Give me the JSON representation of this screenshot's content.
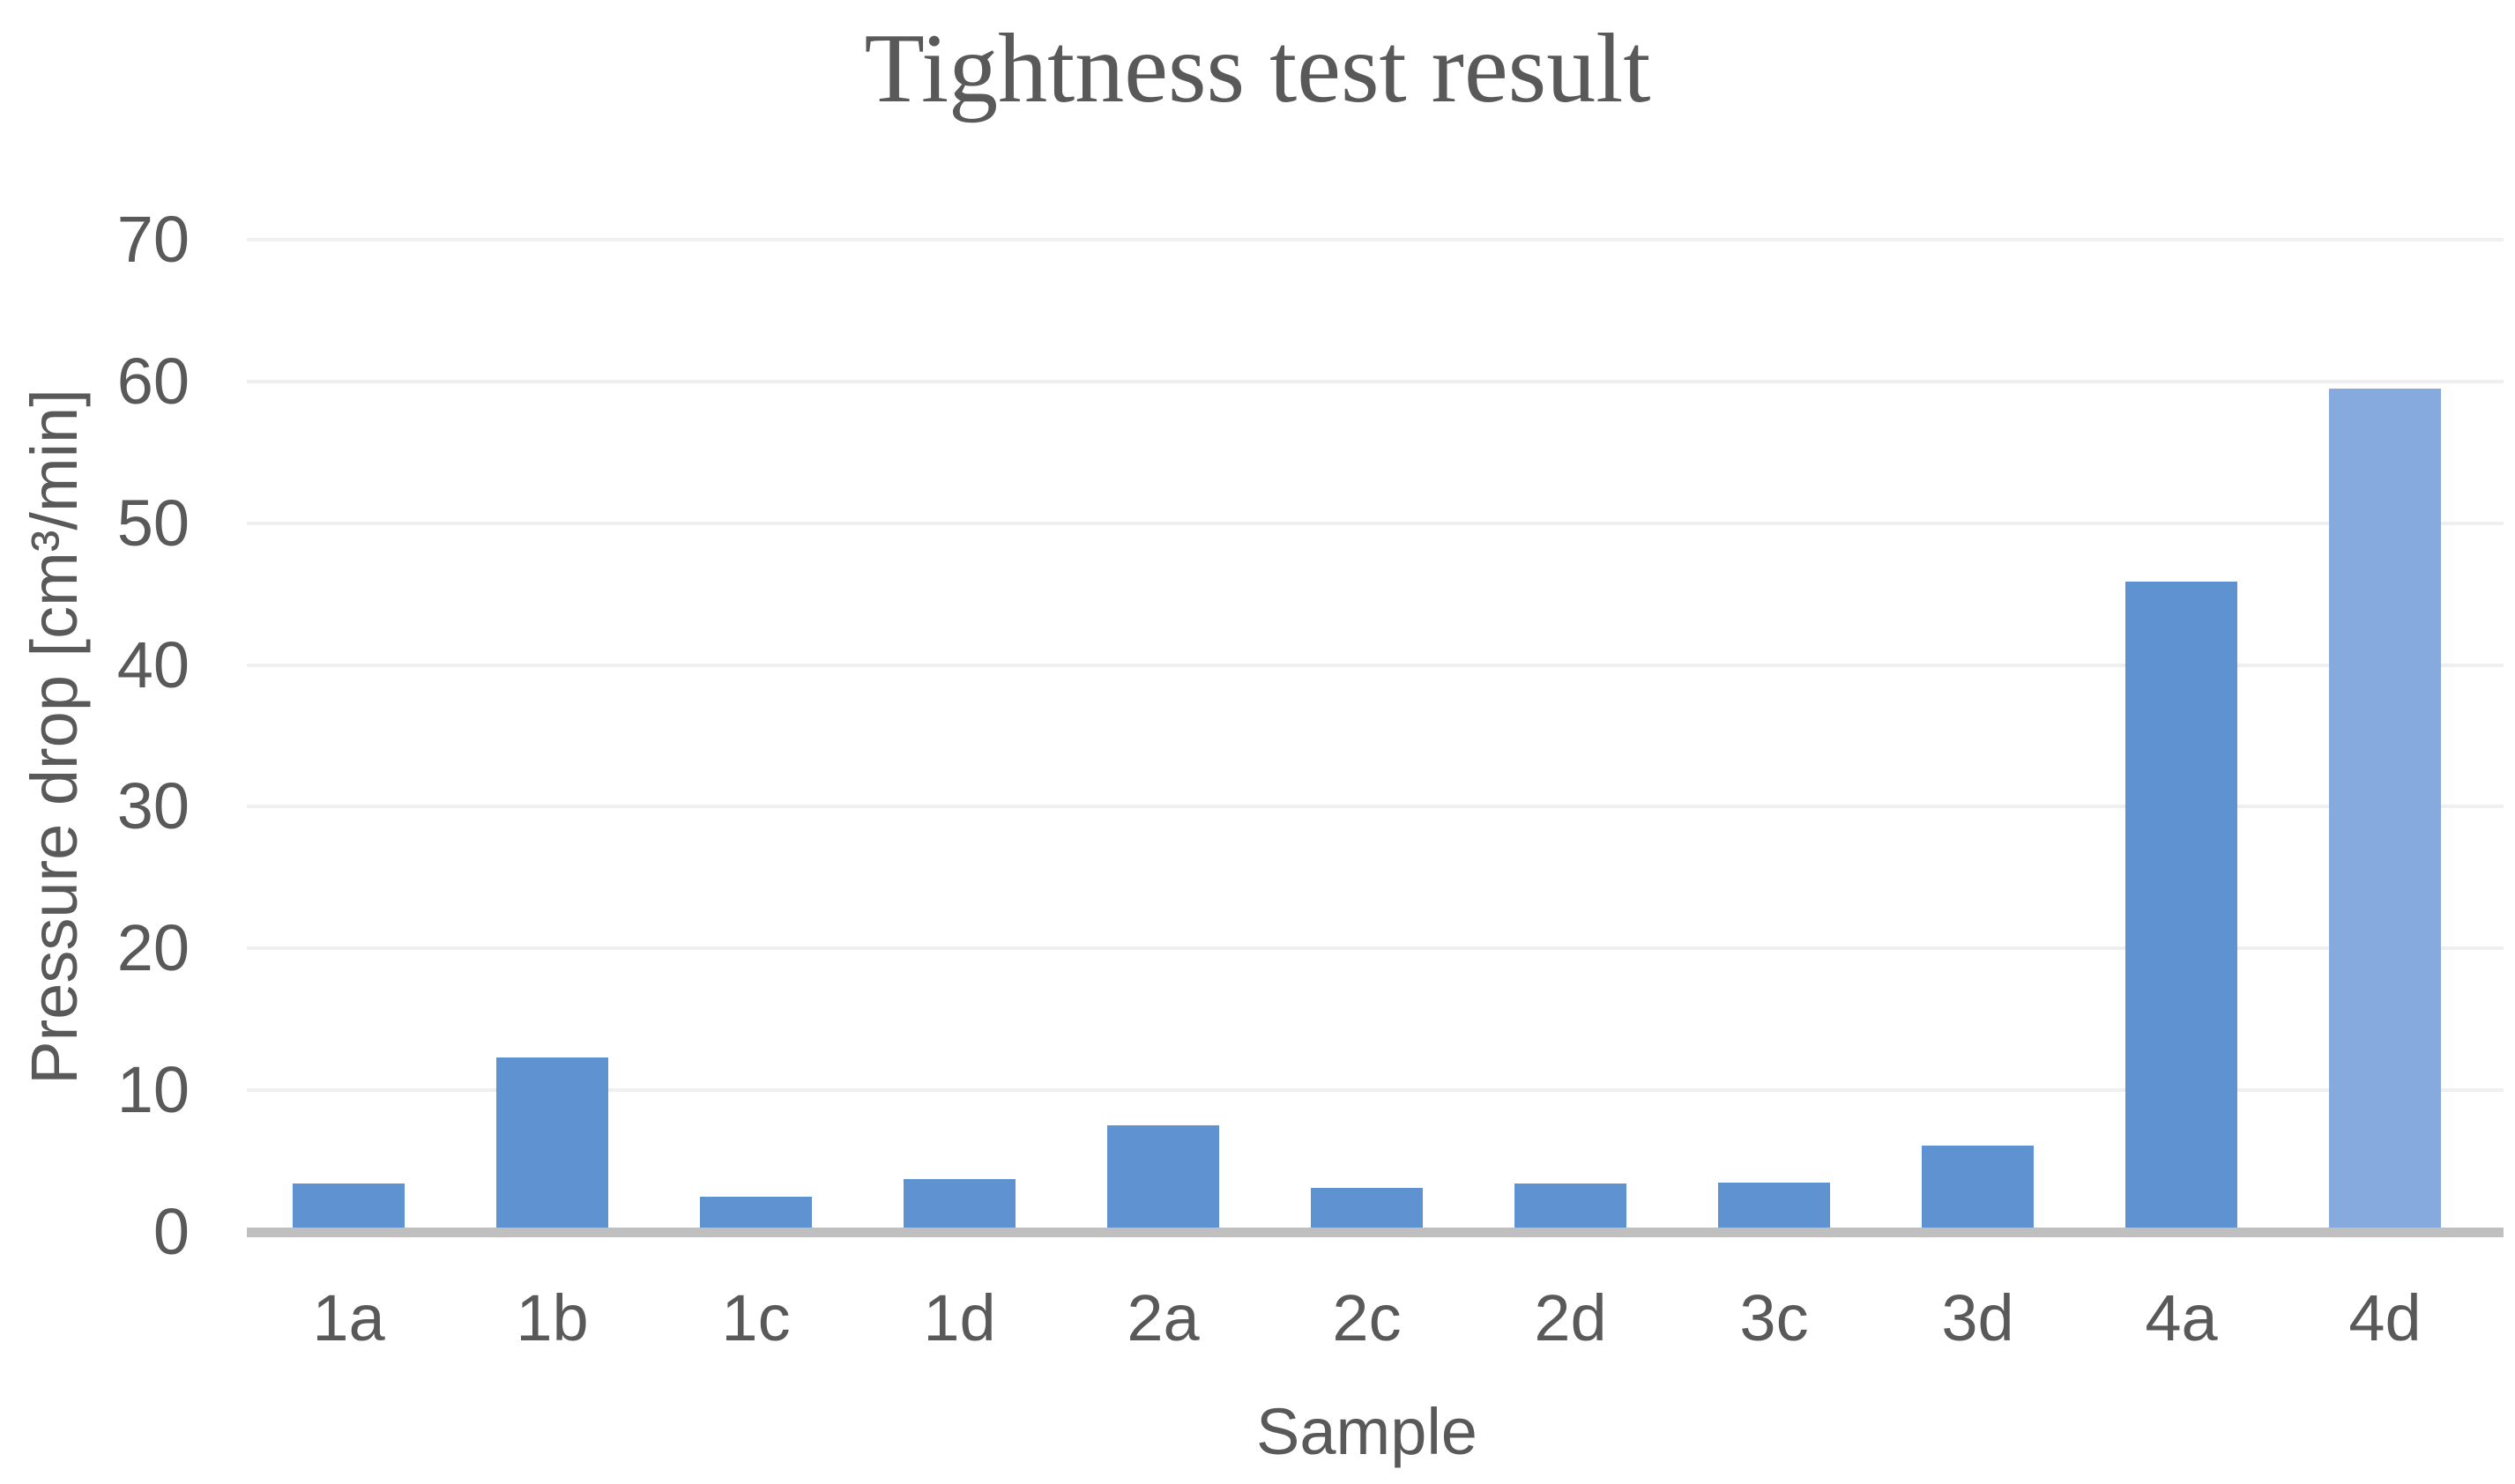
{
  "chart_data": {
    "type": "bar",
    "title": "Tightness test result",
    "xlabel": "Sample",
    "ylabel": "Pressure drop [cm³/min]",
    "categories": [
      "1a",
      "1b",
      "1c",
      "1d",
      "2a",
      "2c",
      "2d",
      "3c",
      "3d",
      "4a",
      "4d"
    ],
    "values": [
      3.4,
      12.3,
      2.5,
      3.7,
      7.5,
      3.1,
      3.4,
      3.5,
      6.1,
      45.9,
      59.5
    ],
    "bar_colors": [
      "#5f92d1",
      "#5f92d1",
      "#5f92d1",
      "#5f92d1",
      "#5f92d1",
      "#5f92d1",
      "#5f92d1",
      "#5f92d1",
      "#5f92d1",
      "#5f92d1",
      "#86aade"
    ],
    "ylim": [
      0,
      70
    ],
    "yticks": [
      0,
      10,
      20,
      30,
      40,
      50,
      60,
      70
    ],
    "grid": "horizontal",
    "legend": "none",
    "colors": {
      "bar_default": "#5f92d1",
      "bar_light": "#86aade",
      "text": "#595959",
      "gridline": "#efefef",
      "axis_line": "#bfbfbf",
      "background": "#ffffff"
    }
  }
}
